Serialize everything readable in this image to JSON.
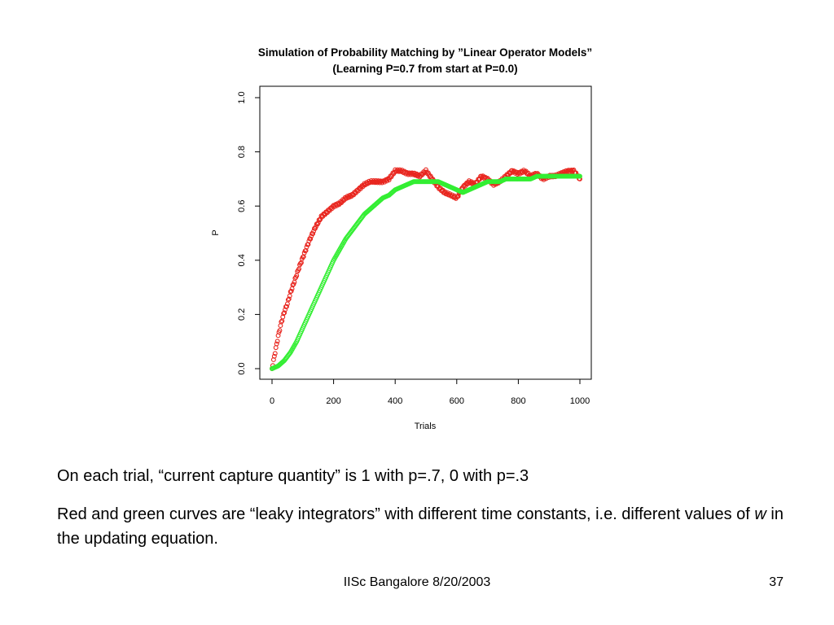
{
  "chart_data": {
    "type": "scatter",
    "title": "Simulation of Probability Matching by ”Linear Operator Models”",
    "subtitle": "(Learning P=0.7 from start at P=0.0)",
    "xlabel": "Trials",
    "ylabel": "P",
    "xlim": [
      0,
      1000
    ],
    "ylim": [
      0,
      1
    ],
    "xticks": [
      0,
      200,
      400,
      600,
      800,
      1000
    ],
    "yticks": [
      0.0,
      0.2,
      0.4,
      0.6,
      0.8,
      1.0
    ],
    "ytick_labels": [
      "0.0",
      "0.2",
      "0.4",
      "0.6",
      "0.8",
      "1.0"
    ],
    "grid": false,
    "series": [
      {
        "color": "#e8261f",
        "x": [
          0,
          10,
          20,
          30,
          40,
          50,
          60,
          75,
          90,
          100,
          120,
          140,
          160,
          180,
          200,
          220,
          240,
          260,
          280,
          300,
          320,
          340,
          360,
          380,
          400,
          420,
          440,
          460,
          480,
          500,
          520,
          540,
          560,
          580,
          600,
          620,
          640,
          660,
          680,
          700,
          720,
          740,
          760,
          780,
          800,
          820,
          840,
          860,
          880,
          900,
          920,
          940,
          960,
          980,
          1000
        ],
        "y": [
          0.0,
          0.06,
          0.12,
          0.17,
          0.21,
          0.24,
          0.28,
          0.33,
          0.38,
          0.41,
          0.47,
          0.52,
          0.56,
          0.58,
          0.6,
          0.61,
          0.63,
          0.64,
          0.66,
          0.68,
          0.69,
          0.69,
          0.69,
          0.7,
          0.73,
          0.73,
          0.72,
          0.72,
          0.71,
          0.73,
          0.7,
          0.67,
          0.65,
          0.64,
          0.63,
          0.67,
          0.69,
          0.68,
          0.71,
          0.7,
          0.68,
          0.69,
          0.71,
          0.73,
          0.72,
          0.73,
          0.71,
          0.72,
          0.7,
          0.71,
          0.71,
          0.72,
          0.73,
          0.73,
          0.7
        ]
      },
      {
        "color": "#33ee33",
        "x": [
          0,
          20,
          40,
          60,
          80,
          100,
          120,
          140,
          160,
          180,
          200,
          220,
          240,
          260,
          280,
          300,
          320,
          340,
          360,
          380,
          400,
          420,
          440,
          460,
          480,
          500,
          520,
          540,
          560,
          580,
          600,
          620,
          640,
          660,
          680,
          700,
          720,
          740,
          760,
          780,
          800,
          820,
          840,
          860,
          880,
          900,
          920,
          940,
          960,
          980,
          1000
        ],
        "y": [
          0.0,
          0.01,
          0.03,
          0.06,
          0.1,
          0.15,
          0.2,
          0.25,
          0.3,
          0.35,
          0.4,
          0.44,
          0.48,
          0.51,
          0.54,
          0.57,
          0.59,
          0.61,
          0.63,
          0.64,
          0.66,
          0.67,
          0.68,
          0.69,
          0.69,
          0.69,
          0.69,
          0.69,
          0.68,
          0.67,
          0.66,
          0.65,
          0.66,
          0.67,
          0.68,
          0.69,
          0.69,
          0.69,
          0.7,
          0.7,
          0.7,
          0.7,
          0.7,
          0.71,
          0.71,
          0.71,
          0.71,
          0.71,
          0.71,
          0.71,
          0.71
        ]
      }
    ]
  },
  "bullets": {
    "line1": "On each trial, “current capture quantity” is 1 with p=.7, 0 with p=.3",
    "line2_part1": "Red and green curves are “leaky integrators” with different time constants, i.e. different values of ",
    "line2_italic": "w",
    "line2_part2": " in the updating equation."
  },
  "footer": {
    "text": "IISc Bangalore 8/20/2003",
    "page_number": "37"
  }
}
